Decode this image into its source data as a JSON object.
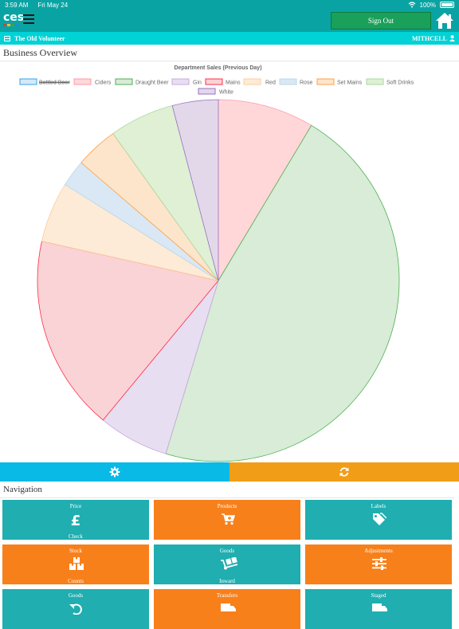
{
  "status": {
    "time": "3:59 AM",
    "date": "Fri May 24",
    "battery": "100%"
  },
  "header": {
    "logo": "ces",
    "signout_label": "Sign Out"
  },
  "venue": {
    "name": "The Old Volunteer",
    "user": "MITHCELL"
  },
  "overview": {
    "title": "Business Overview"
  },
  "chart_data": {
    "type": "pie",
    "title": "Department Sales (Previous Day)",
    "legend_position": "top",
    "legend": [
      {
        "label": "Bottled Beer",
        "color": "#36a2eb",
        "fill": "#d6e9f8",
        "hidden": true
      },
      {
        "label": "Ciders",
        "color": "#ff9aa9",
        "fill": "#ffd7d9"
      },
      {
        "label": "Draught Beer",
        "color": "#4caf50",
        "fill": "#d8ecd7"
      },
      {
        "label": "Gin",
        "color": "#c9a8dd",
        "fill": "#e8def2"
      },
      {
        "label": "Mains",
        "color": "#ff2e4a",
        "fill": "#f9d3d5"
      },
      {
        "label": "Red",
        "color": "#ffcc99",
        "fill": "#fdebd7"
      },
      {
        "label": "Rose",
        "color": "#b8d8ee",
        "fill": "#d9e8f4"
      },
      {
        "label": "Set Mains",
        "color": "#ffa040",
        "fill": "#fde5cc"
      },
      {
        "label": "Soft Drinks",
        "color": "#a8d8a0",
        "fill": "#e0f0d4"
      },
      {
        "label": "White",
        "color": "#9a72c2",
        "fill": "#e2d8ea"
      }
    ],
    "slices": [
      {
        "label": "Ciders",
        "value": 8.6,
        "color": "#ff9aa9",
        "fill": "#ffd7d9"
      },
      {
        "label": "Draught Beer",
        "value": 46.1,
        "color": "#4caf50",
        "fill": "#d8ecd7"
      },
      {
        "label": "Gin",
        "value": 6.3,
        "color": "#c9a8dd",
        "fill": "#e8def2"
      },
      {
        "label": "Mains",
        "value": 17.5,
        "color": "#ff2e4a",
        "fill": "#f9d3d5"
      },
      {
        "label": "Red",
        "value": 5.4,
        "color": "#ffcc99",
        "fill": "#fdebd7"
      },
      {
        "label": "Rose",
        "value": 2.4,
        "color": "#b8d8ee",
        "fill": "#d9e8f4"
      },
      {
        "label": "Set Mains",
        "value": 3.8,
        "color": "#ffa040",
        "fill": "#fde5cc"
      },
      {
        "label": "Soft Drinks",
        "value": 5.8,
        "color": "#a8d8a0",
        "fill": "#e0f0d4"
      },
      {
        "label": "White",
        "value": 4.1,
        "color": "#9a72c2",
        "fill": "#e2d8ea"
      }
    ]
  },
  "actions": {
    "settings_icon": "gear-icon",
    "refresh_icon": "refresh-icon",
    "blue": "#09b9e6",
    "orange": "#f29d17"
  },
  "nav": {
    "title": "Navigation",
    "tiles": [
      {
        "line1": "Price",
        "line2": "Check",
        "icon": "pound-icon",
        "color": "teal"
      },
      {
        "line1": "Products",
        "line2": "",
        "icon": "cart-plus-icon",
        "color": "orange"
      },
      {
        "line1": "Labels",
        "line2": "",
        "icon": "tags-icon",
        "color": "teal"
      },
      {
        "line1": "Stock",
        "line2": "Counts",
        "icon": "boxes-icon",
        "color": "orange"
      },
      {
        "line1": "Goods",
        "line2": "Inward",
        "icon": "dolly-icon",
        "color": "teal"
      },
      {
        "line1": "Adjustments",
        "line2": "",
        "icon": "sliders-icon",
        "color": "orange"
      },
      {
        "line1": "Goods",
        "line2": "",
        "icon": "undo-icon",
        "color": "teal"
      },
      {
        "line1": "Transfers",
        "line2": "",
        "icon": "truck-icon",
        "color": "orange"
      },
      {
        "line1": "Staged",
        "line2": "",
        "icon": "truck-loading-icon",
        "color": "teal"
      }
    ]
  }
}
